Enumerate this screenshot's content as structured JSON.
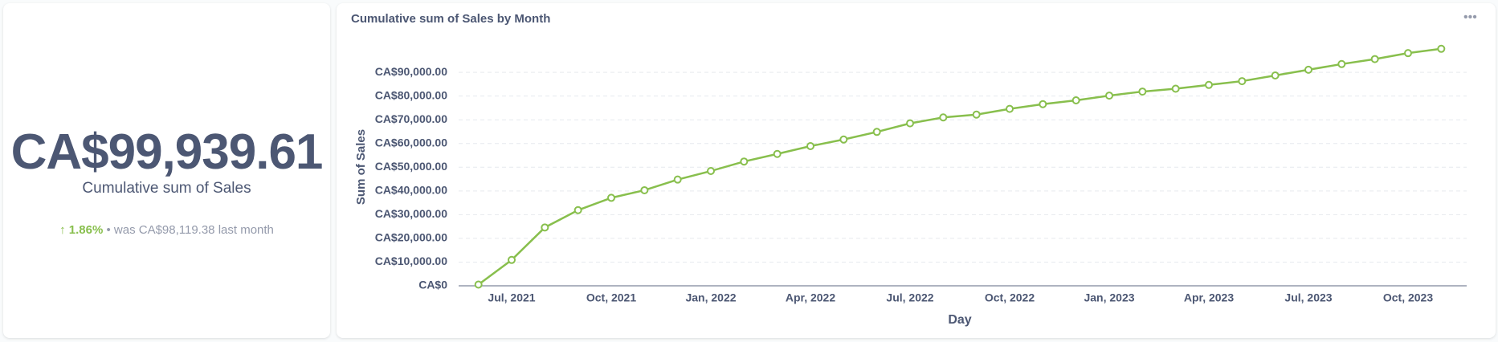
{
  "summary": {
    "value": "CA$99,939.61",
    "label": "Cumulative sum of Sales",
    "change": "1.86%",
    "comparison": "• was CA$98,119.38",
    "period": "last month"
  },
  "chart_data": {
    "type": "line",
    "title": "Cumulative sum of Sales by Month",
    "x_label": "Day",
    "y_label": "Sum of Sales",
    "categories": [
      null,
      "Jul, 2021",
      null,
      null,
      "Oct, 2021",
      null,
      null,
      "Jan, 2022",
      null,
      null,
      "Apr, 2022",
      null,
      null,
      "Jul, 2022",
      null,
      null,
      "Oct, 2022",
      null,
      null,
      "Jan, 2023",
      null,
      null,
      "Apr, 2023",
      null,
      null,
      "Jul, 2023",
      null,
      null,
      "Oct, 2023",
      null
    ],
    "series": [
      {
        "name": "Sum of Sales",
        "color": "#88bf4d",
        "values": [
          500,
          10900,
          24600,
          31900,
          37100,
          40300,
          44800,
          48400,
          52400,
          55600,
          58900,
          61700,
          64900,
          68500,
          71000,
          72200,
          74600,
          76600,
          78200,
          80200,
          81900,
          83100,
          84700,
          86300,
          88700,
          91100,
          93500,
          95600,
          98119.38,
          99939.61
        ]
      }
    ],
    "ylim": [
      0,
      100000
    ],
    "yticks": [
      {
        "value": 0,
        "label": "CA$0"
      },
      {
        "value": 10000,
        "label": "CA$10,000.00"
      },
      {
        "value": 20000,
        "label": "CA$20,000.00"
      },
      {
        "value": 30000,
        "label": "CA$30,000.00"
      },
      {
        "value": 40000,
        "label": "CA$40,000.00"
      },
      {
        "value": 50000,
        "label": "CA$50,000.00"
      },
      {
        "value": 60000,
        "label": "CA$60,000.00"
      },
      {
        "value": 70000,
        "label": "CA$70,000.00"
      },
      {
        "value": 80000,
        "label": "CA$80,000.00"
      },
      {
        "value": 90000,
        "label": "CA$90,000.00"
      }
    ],
    "grid": true
  }
}
